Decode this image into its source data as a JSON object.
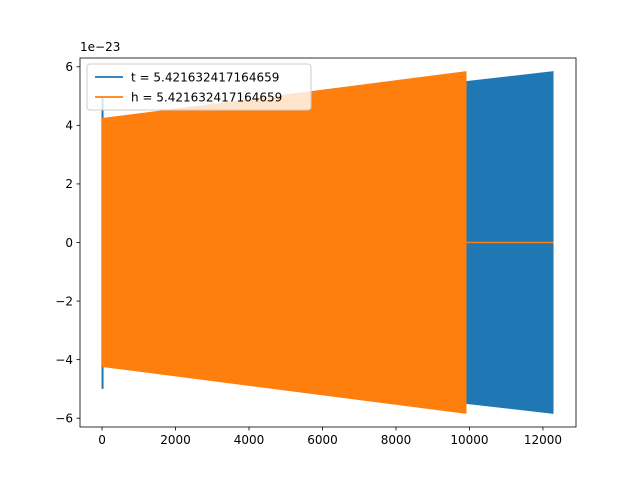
{
  "chart_data": {
    "type": "line",
    "title": "",
    "xlabel": "",
    "ylabel": "",
    "y_offset_label": "1e−23",
    "xlim": [
      -600,
      12900
    ],
    "ylim": [
      -6.3,
      6.3
    ],
    "x_ticks": [
      0,
      2000,
      4000,
      6000,
      8000,
      10000,
      12000
    ],
    "y_ticks": [
      -6,
      -4,
      -2,
      0,
      2,
      4,
      6
    ],
    "grid": false,
    "legend_position": "top-left",
    "series": [
      {
        "name": "t = 5.421632417164659",
        "color": "#1f77b4",
        "x_start": 0,
        "x_end": 12288,
        "envelope_start": 4.1,
        "envelope_end": 5.85,
        "spike_start": 5.0
      },
      {
        "name": "h = 5.421632417164659",
        "color": "#ff7f0e",
        "x_start": 0,
        "x_end": 9920,
        "envelope_start": 4.25,
        "envelope_end": 5.85,
        "zero_segment_end": 12288
      }
    ]
  }
}
